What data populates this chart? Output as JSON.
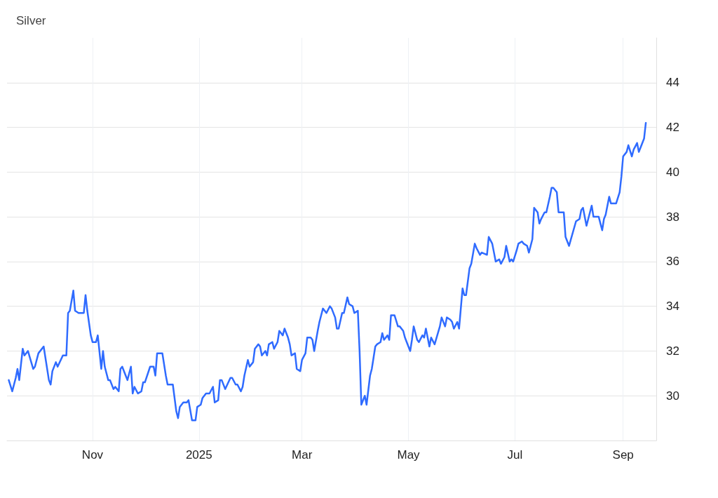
{
  "chart_data": {
    "type": "line",
    "title": "Silver",
    "x": [
      "2024-09-14",
      "2024-09-16",
      "2024-09-18",
      "2024-09-19",
      "2024-09-20",
      "2024-09-22",
      "2024-09-23",
      "2024-09-25",
      "2024-09-28",
      "2024-09-29",
      "2024-10-01",
      "2024-10-04",
      "2024-10-05",
      "2024-10-07",
      "2024-10-08",
      "2024-10-09",
      "2024-10-11",
      "2024-10-12",
      "2024-10-15",
      "2024-10-17",
      "2024-10-18",
      "2024-10-19",
      "2024-10-21",
      "2024-10-22",
      "2024-10-24",
      "2024-10-27",
      "2024-10-28",
      "2024-10-29",
      "2024-10-31",
      "2024-11-01",
      "2024-11-03",
      "2024-11-04",
      "2024-11-06",
      "2024-11-07",
      "2024-11-08",
      "2024-11-10",
      "2024-11-11",
      "2024-11-13",
      "2024-11-14",
      "2024-11-16",
      "2024-11-17",
      "2024-11-18",
      "2024-11-20",
      "2024-11-21",
      "2024-11-23",
      "2024-11-24",
      "2024-11-25",
      "2024-11-27",
      "2024-11-29",
      "2024-11-30",
      "2024-12-01",
      "2024-12-04",
      "2024-12-06",
      "2024-12-07",
      "2024-12-08",
      "2024-12-11",
      "2024-12-13",
      "2024-12-14",
      "2024-12-17",
      "2024-12-19",
      "2024-12-20",
      "2024-12-21",
      "2024-12-23",
      "2024-12-25",
      "2024-12-26",
      "2024-12-28",
      "2024-12-30",
      "2024-12-31",
      "2025-01-02",
      "2025-01-03",
      "2025-01-05",
      "2025-01-07",
      "2025-01-09",
      "2025-01-10",
      "2025-01-12",
      "2025-01-13",
      "2025-01-14",
      "2025-01-16",
      "2025-01-19",
      "2025-01-20",
      "2025-01-22",
      "2025-01-23",
      "2025-01-25",
      "2025-01-26",
      "2025-01-27",
      "2025-01-29",
      "2025-01-30",
      "2025-02-01",
      "2025-02-02",
      "2025-02-04",
      "2025-02-05",
      "2025-02-06",
      "2025-02-08",
      "2025-02-09",
      "2025-02-10",
      "2025-02-12",
      "2025-02-13",
      "2025-02-15",
      "2025-02-16",
      "2025-02-18",
      "2025-02-19",
      "2025-02-21",
      "2025-02-22",
      "2025-02-23",
      "2025-02-25",
      "2025-02-26",
      "2025-02-28",
      "2025-03-01",
      "2025-03-03",
      "2025-03-04",
      "2025-03-06",
      "2025-03-07",
      "2025-03-08",
      "2025-03-10",
      "2025-03-11",
      "2025-03-13",
      "2025-03-14",
      "2025-03-15",
      "2025-03-17",
      "2025-03-18",
      "2025-03-20",
      "2025-03-21",
      "2025-03-22",
      "2025-03-24",
      "2025-03-25",
      "2025-03-27",
      "2025-03-28",
      "2025-03-30",
      "2025-03-31",
      "2025-04-02",
      "2025-04-03",
      "2025-04-04",
      "2025-04-06",
      "2025-04-07",
      "2025-04-09",
      "2025-04-10",
      "2025-04-12",
      "2025-04-13",
      "2025-04-15",
      "2025-04-16",
      "2025-04-17",
      "2025-04-19",
      "2025-04-20",
      "2025-04-21",
      "2025-04-23",
      "2025-04-25",
      "2025-04-26",
      "2025-04-28",
      "2025-04-29",
      "2025-04-30",
      "2025-05-02",
      "2025-05-03",
      "2025-05-04",
      "2025-05-06",
      "2025-05-07",
      "2025-05-09",
      "2025-05-10",
      "2025-05-11",
      "2025-05-13",
      "2025-05-14",
      "2025-05-16",
      "2025-05-19",
      "2025-05-20",
      "2025-05-22",
      "2025-05-23",
      "2025-05-25",
      "2025-05-26",
      "2025-05-27",
      "2025-05-29",
      "2025-05-30",
      "2025-06-01",
      "2025-06-02",
      "2025-06-03",
      "2025-06-05",
      "2025-06-06",
      "2025-06-08",
      "2025-06-09",
      "2025-06-11",
      "2025-06-12",
      "2025-06-15",
      "2025-06-16",
      "2025-06-18",
      "2025-06-19",
      "2025-06-20",
      "2025-06-22",
      "2025-06-23",
      "2025-06-25",
      "2025-06-26",
      "2025-06-28",
      "2025-06-29",
      "2025-06-30",
      "2025-07-02",
      "2025-07-03",
      "2025-07-05",
      "2025-07-06",
      "2025-07-08",
      "2025-07-09",
      "2025-07-11",
      "2025-07-12",
      "2025-07-14",
      "2025-07-15",
      "2025-07-16",
      "2025-07-18",
      "2025-07-19",
      "2025-07-21",
      "2025-07-22",
      "2025-07-23",
      "2025-07-25",
      "2025-07-26",
      "2025-07-29",
      "2025-07-30",
      "2025-08-01",
      "2025-08-05",
      "2025-08-07",
      "2025-08-08",
      "2025-08-09",
      "2025-08-11",
      "2025-08-12",
      "2025-08-14",
      "2025-08-15",
      "2025-08-18",
      "2025-08-20",
      "2025-08-21",
      "2025-08-22",
      "2025-08-24",
      "2025-08-25",
      "2025-08-27",
      "2025-08-28",
      "2025-08-30",
      "2025-08-31",
      "2025-09-01",
      "2025-09-03",
      "2025-09-04",
      "2025-09-06",
      "2025-09-07",
      "2025-09-09",
      "2025-09-10",
      "2025-09-11",
      "2025-09-13",
      "2025-09-14"
    ],
    "series": [
      {
        "color": "#2f6bff",
        "values": [
          30.7,
          30.2,
          30.8,
          31.2,
          30.7,
          32.1,
          31.8,
          32.0,
          31.2,
          31.3,
          31.9,
          32.2,
          31.7,
          30.7,
          30.5,
          31.1,
          31.5,
          31.3,
          31.8,
          31.8,
          33.7,
          33.8,
          34.7,
          33.8,
          33.7,
          33.7,
          34.5,
          33.8,
          32.7,
          32.4,
          32.4,
          32.7,
          31.2,
          32.0,
          31.3,
          30.7,
          30.7,
          30.3,
          30.4,
          30.2,
          31.2,
          31.3,
          30.9,
          30.7,
          31.3,
          30.1,
          30.4,
          30.1,
          30.2,
          30.6,
          30.6,
          31.3,
          31.3,
          30.9,
          31.9,
          31.9,
          30.9,
          30.5,
          30.5,
          29.3,
          29.0,
          29.5,
          29.7,
          29.7,
          29.8,
          28.9,
          28.9,
          29.5,
          29.6,
          29.9,
          30.1,
          30.1,
          30.4,
          29.7,
          29.8,
          30.7,
          30.7,
          30.3,
          30.8,
          30.8,
          30.5,
          30.5,
          30.2,
          30.4,
          30.9,
          31.6,
          31.3,
          31.5,
          32.1,
          32.3,
          32.2,
          31.8,
          32.0,
          31.8,
          32.3,
          32.4,
          32.1,
          32.4,
          32.9,
          32.7,
          33.0,
          32.6,
          32.3,
          31.8,
          31.9,
          31.2,
          31.1,
          31.6,
          31.9,
          32.6,
          32.6,
          32.5,
          32.0,
          32.9,
          33.3,
          33.9,
          33.8,
          33.7,
          34.0,
          33.9,
          33.5,
          33.0,
          33.0,
          33.7,
          33.7,
          34.4,
          34.1,
          34.0,
          33.7,
          33.8,
          32.0,
          29.6,
          30.0,
          29.6,
          30.9,
          31.2,
          32.2,
          32.3,
          32.4,
          32.8,
          32.5,
          32.7,
          32.5,
          33.6,
          33.6,
          33.1,
          33.1,
          32.9,
          32.6,
          32.4,
          32.0,
          32.5,
          33.1,
          32.5,
          32.4,
          32.7,
          32.6,
          33.0,
          32.2,
          32.6,
          32.3,
          33.1,
          33.5,
          33.1,
          33.5,
          33.4,
          33.3,
          33.0,
          33.3,
          33.0,
          34.8,
          34.5,
          34.5,
          35.7,
          35.9,
          36.8,
          36.6,
          36.3,
          36.4,
          36.3,
          37.1,
          36.8,
          36.4,
          36.0,
          36.1,
          35.9,
          36.2,
          36.7,
          36.0,
          36.1,
          36.0,
          36.5,
          36.8,
          36.9,
          36.8,
          36.7,
          36.4,
          37.0,
          38.4,
          38.2,
          37.7,
          37.9,
          38.2,
          38.2,
          38.9,
          39.3,
          39.3,
          39.1,
          38.2,
          38.2,
          37.1,
          36.7,
          37.8,
          37.9,
          38.3,
          38.4,
          37.6,
          37.9,
          38.5,
          38.0,
          38.0,
          37.4,
          37.9,
          38.1,
          38.9,
          38.6,
          38.6,
          38.6,
          39.1,
          39.8,
          40.7,
          40.9,
          41.2,
          40.7,
          41.0,
          41.3,
          40.9,
          41.1,
          41.5,
          42.2
        ]
      }
    ],
    "xlim": [
      "2024-09-13",
      "2025-09-20"
    ],
    "xticks": [
      {
        "value": "2024-11-01",
        "label": "Nov"
      },
      {
        "value": "2025-01-01",
        "label": "2025"
      },
      {
        "value": "2025-03-01",
        "label": "Mar"
      },
      {
        "value": "2025-05-01",
        "label": "May"
      },
      {
        "value": "2025-07-01",
        "label": "Jul"
      },
      {
        "value": "2025-09-01",
        "label": "Sep"
      }
    ],
    "ylim": [
      28,
      46
    ],
    "yticks": [
      30,
      32,
      34,
      36,
      38,
      40,
      42,
      44
    ],
    "grid": true,
    "marker": "none",
    "line_style": "solid"
  }
}
